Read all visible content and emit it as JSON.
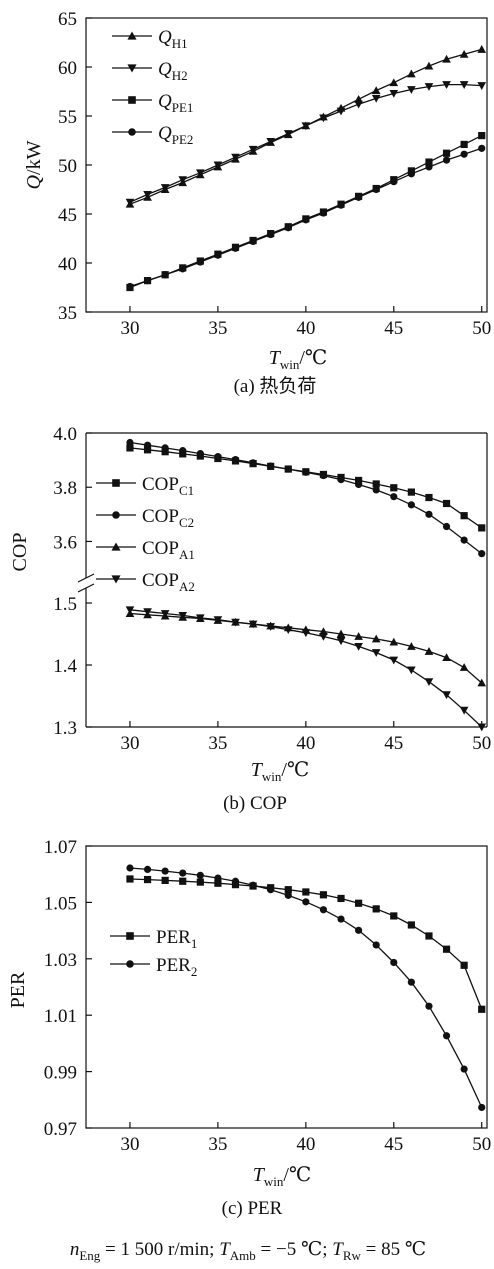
{
  "chart_data": [
    {
      "type": "line",
      "caption": "(a) 热负荷",
      "ylabel": "Q/kW",
      "xlabel": "T_win/℃",
      "xlim": [
        27.5,
        50.3
      ],
      "ylim": [
        35,
        65
      ],
      "xticks": [
        30,
        35,
        40,
        45,
        50
      ],
      "yticks": [
        35,
        40,
        45,
        50,
        55,
        60,
        65
      ],
      "legend": "top-left",
      "x": [
        30,
        31,
        32,
        33,
        34,
        35,
        36,
        37,
        38,
        39,
        40,
        41,
        42,
        43,
        44,
        45,
        46,
        47,
        48,
        49,
        50
      ],
      "series": [
        {
          "name": "Q_H1",
          "marker": "triangle-up",
          "values": [
            46.0,
            46.7,
            47.5,
            48.2,
            49.0,
            49.8,
            50.6,
            51.4,
            52.3,
            53.1,
            54.0,
            54.9,
            55.8,
            56.7,
            57.6,
            58.4,
            59.3,
            60.1,
            60.8,
            61.3,
            61.8
          ]
        },
        {
          "name": "Q_H2",
          "marker": "triangle-down",
          "values": [
            46.2,
            47.0,
            47.7,
            48.5,
            49.2,
            50.0,
            50.8,
            51.6,
            52.4,
            53.2,
            54.0,
            54.8,
            55.5,
            56.2,
            56.8,
            57.3,
            57.7,
            58.0,
            58.2,
            58.2,
            58.1
          ]
        },
        {
          "name": "Q_PE1",
          "marker": "square",
          "values": [
            37.5,
            38.2,
            38.8,
            39.5,
            40.2,
            40.9,
            41.6,
            42.3,
            43.0,
            43.7,
            44.5,
            45.2,
            46.0,
            46.8,
            47.6,
            48.5,
            49.4,
            50.3,
            51.2,
            52.1,
            53.0
          ]
        },
        {
          "name": "Q_PE2",
          "marker": "circle",
          "values": [
            37.6,
            38.2,
            38.8,
            39.4,
            40.1,
            40.8,
            41.5,
            42.2,
            42.9,
            43.6,
            44.4,
            45.1,
            45.9,
            46.7,
            47.5,
            48.3,
            49.1,
            49.8,
            50.5,
            51.1,
            51.7
          ]
        }
      ]
    },
    {
      "type": "line",
      "caption": "(b) COP",
      "ylabel": "COP",
      "xlabel": "T_win/℃",
      "xlim": [
        27.5,
        50.3
      ],
      "axis_break": true,
      "upper_ylim": [
        3.55,
        4.0
      ],
      "lower_ylim": [
        1.3,
        1.5
      ],
      "xticks": [
        30,
        35,
        40,
        45,
        50
      ],
      "yticks_upper": [
        "3.6",
        "3.8",
        "4.0"
      ],
      "yticks_lower": [
        "1.3",
        "1.4",
        "1.5"
      ],
      "legend": "left",
      "x": [
        30,
        31,
        32,
        33,
        34,
        35,
        36,
        37,
        38,
        39,
        40,
        41,
        42,
        43,
        44,
        45,
        46,
        47,
        48,
        49,
        50
      ],
      "series": [
        {
          "name": "COP_C1",
          "marker": "square",
          "values": [
            3.945,
            3.938,
            3.931,
            3.923,
            3.915,
            3.906,
            3.897,
            3.887,
            3.877,
            3.867,
            3.857,
            3.847,
            3.836,
            3.825,
            3.812,
            3.798,
            3.782,
            3.762,
            3.74,
            3.695,
            3.65
          ]
        },
        {
          "name": "COP_C2",
          "marker": "circle",
          "values": [
            3.965,
            3.955,
            3.945,
            3.935,
            3.924,
            3.913,
            3.902,
            3.89,
            3.878,
            3.867,
            3.855,
            3.843,
            3.828,
            3.81,
            3.79,
            3.765,
            3.735,
            3.7,
            3.655,
            3.605,
            3.555
          ]
        },
        {
          "name": "COP_A1",
          "marker": "triangle-up",
          "values": [
            1.483,
            1.481,
            1.479,
            1.477,
            1.475,
            1.472,
            1.469,
            1.466,
            1.463,
            1.46,
            1.457,
            1.454,
            1.45,
            1.446,
            1.442,
            1.437,
            1.43,
            1.422,
            1.412,
            1.396,
            1.371
          ]
        },
        {
          "name": "COP_A2",
          "marker": "triangle-down",
          "values": [
            1.489,
            1.486,
            1.483,
            1.48,
            1.476,
            1.473,
            1.469,
            1.466,
            1.462,
            1.457,
            1.452,
            1.446,
            1.439,
            1.43,
            1.42,
            1.408,
            1.392,
            1.373,
            1.352,
            1.327,
            1.3
          ]
        }
      ]
    },
    {
      "type": "line",
      "caption": "(c) PER",
      "ylabel": "PER",
      "xlabel": "T_win/℃",
      "xlim": [
        27.5,
        50.3
      ],
      "ylim": [
        0.97,
        1.07
      ],
      "xticks": [
        30,
        35,
        40,
        45,
        50
      ],
      "yticks": [
        "0.97",
        "0.99",
        "1.01",
        "1.03",
        "1.05",
        "1.07"
      ],
      "legend": "left",
      "x": [
        30,
        31,
        32,
        33,
        34,
        35,
        36,
        37,
        38,
        39,
        40,
        41,
        42,
        43,
        44,
        45,
        46,
        47,
        48,
        49,
        50
      ],
      "series": [
        {
          "name": "PER_1",
          "marker": "square",
          "values": [
            1.0583,
            1.0581,
            1.0578,
            1.0575,
            1.0572,
            1.0568,
            1.0563,
            1.0558,
            1.0552,
            1.0545,
            1.0537,
            1.0527,
            1.0514,
            1.0497,
            1.0477,
            1.0452,
            1.042,
            1.0381,
            1.0334,
            1.0277,
            1.0121
          ]
        },
        {
          "name": "PER_2",
          "marker": "circle",
          "values": [
            1.0622,
            1.0617,
            1.0611,
            1.0604,
            1.0596,
            1.0586,
            1.0575,
            1.0561,
            1.0545,
            1.0525,
            1.0502,
            1.0474,
            1.0441,
            1.0401,
            1.0349,
            1.0287,
            1.0217,
            1.0132,
            1.0027,
            0.9909,
            0.9773
          ]
        }
      ]
    }
  ],
  "labels": {
    "a": {
      "ytick": [
        "35",
        "40",
        "45",
        "50",
        "55",
        "60",
        "65"
      ],
      "xtick": [
        "30",
        "35",
        "40",
        "45",
        "50"
      ],
      "ylabel": "Q/kW",
      "xlabel": "T_win/℃",
      "legend": [
        "Q_H1",
        "Q_H2",
        "Q_PE1",
        "Q_PE2"
      ],
      "caption": "(a) 热负荷"
    },
    "b": {
      "ytick_upper": [
        "3.6",
        "3.8",
        "4.0"
      ],
      "ytick_lower": [
        "1.3",
        "1.4",
        "1.5"
      ],
      "xtick": [
        "30",
        "35",
        "40",
        "45",
        "50"
      ],
      "ylabel": "COP",
      "xlabel": "T_win/℃",
      "legend": [
        "COP_C1",
        "COP_C2",
        "COP_A1",
        "COP_A2"
      ],
      "caption": "(b) COP"
    },
    "c": {
      "ytick": [
        "0.97",
        "0.99",
        "1.01",
        "1.03",
        "1.05",
        "1.07"
      ],
      "xtick": [
        "30",
        "35",
        "40",
        "45",
        "50"
      ],
      "ylabel": "PER",
      "xlabel": "T_win/℃",
      "legend": [
        "PER_1",
        "PER_2"
      ],
      "caption": "(c) PER"
    },
    "conditions": "n_Eng = 1 500 r/min; T_Amb = −5 ℃; T_Rw = 85 ℃"
  }
}
